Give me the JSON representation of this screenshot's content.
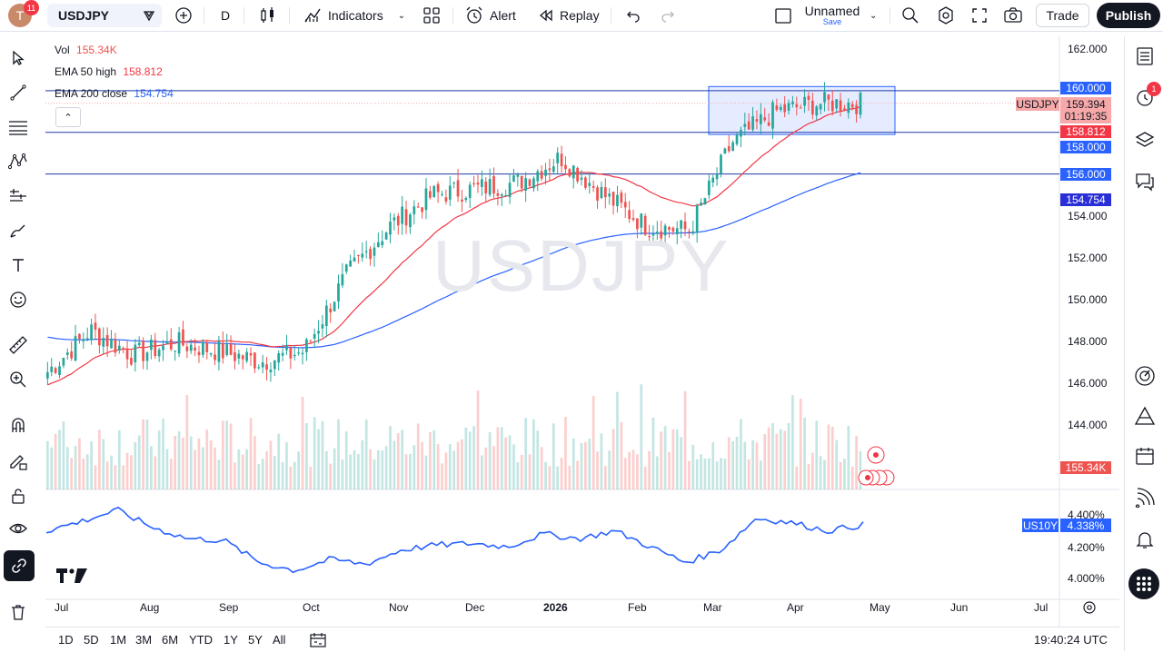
{
  "topbar": {
    "avatar_letter": "T",
    "notifications": "11",
    "symbol": "USDJPY",
    "interval": "D",
    "indicators_label": "Indicators",
    "alert_label": "Alert",
    "replay_label": "Replay",
    "layout_name": "Unnamed",
    "layout_save": "Save",
    "trade_label": "Trade",
    "publish_label": "Publish"
  },
  "legend": {
    "vol_label": "Vol",
    "vol_value": "155.34K",
    "ema50_label": "EMA 50 high",
    "ema50_value": "158.812",
    "ema200_label": "EMA 200 close",
    "ema200_value": "154.754"
  },
  "watermark": "USDJPY",
  "price_axis": {
    "ticks": [
      "162.000",
      "154.000",
      "152.000",
      "150.000",
      "148.000",
      "146.000",
      "144.000"
    ],
    "boxes": {
      "level_160": "160.000",
      "last_price": "159.394",
      "countdown": "01:19:35",
      "symbol_tag": "USDJPY",
      "ema50": "158.812",
      "level_158": "158.000",
      "level_156": "156.000",
      "ema200": "154.754",
      "volume": "155.34K"
    }
  },
  "lower_pane": {
    "symbol_tag": "US10Y",
    "value": "4.338%",
    "ticks": [
      "4.400%",
      "4.200%",
      "4.000%"
    ]
  },
  "time_axis": [
    "Jul",
    "Aug",
    "Sep",
    "Oct",
    "Nov",
    "Dec",
    "2026",
    "Feb",
    "Mar",
    "Apr",
    "May",
    "Jun",
    "Jul"
  ],
  "bottom": {
    "ranges": [
      "1D",
      "5D",
      "1M",
      "3M",
      "6M",
      "YTD",
      "1Y",
      "5Y",
      "All"
    ],
    "clock": "19:40:24 UTC"
  },
  "right_sidebar": {
    "alerts_badge": "1"
  },
  "colors": {
    "up": "#26a69a",
    "down": "#ef5350",
    "ema50": "#f23645",
    "ema200": "#2962ff",
    "levels": "#1e3aa8",
    "us10y": "#2962ff",
    "accent": "#131722"
  },
  "chart_data": {
    "type": "candlestick",
    "symbol": "USDJPY",
    "timeframe": "D",
    "ylim": [
      143.0,
      162.3
    ],
    "horizontal_levels": [
      160.0,
      158.0,
      156.0
    ],
    "rectangle": {
      "top": 160.2,
      "bottom": 157.9,
      "from": "late Feb",
      "to": "late Apr"
    },
    "close_path": [
      [
        "Jul",
        146.5
      ],
      [
        "mid-Jul",
        148.5
      ],
      [
        "Aug",
        147.3
      ],
      [
        "mid-Aug",
        147.9
      ],
      [
        "Sep",
        147.5
      ],
      [
        "mid-Sep",
        147.0
      ],
      [
        "Oct",
        147.5
      ],
      [
        "mid-Oct",
        151.2
      ],
      [
        "Nov",
        153.5
      ],
      [
        "mid-Nov",
        155.0
      ],
      [
        "Dec",
        155.3
      ],
      [
        "mid-Dec",
        155.6
      ],
      [
        "2026",
        156.8
      ],
      [
        "late Jan",
        155.0
      ],
      [
        "Feb",
        153.5
      ],
      [
        "mid-Feb",
        153.3
      ],
      [
        "Mar",
        157.5
      ],
      [
        "mid-Mar",
        159.0
      ],
      [
        "Apr",
        159.4
      ],
      [
        "late Apr",
        159.4
      ]
    ],
    "ema50_high": 158.812,
    "ema200_close": 154.754,
    "last_price": 159.394,
    "volume_last": "155.34K",
    "us10y": {
      "last": 4.338,
      "ylim": [
        3.95,
        4.45
      ],
      "path": [
        4.3,
        4.36,
        4.43,
        4.32,
        4.25,
        4.24,
        4.1,
        4.05,
        4.12,
        4.09,
        4.18,
        4.21,
        4.22,
        4.2,
        4.28,
        4.25,
        4.3,
        4.2,
        4.1,
        4.18,
        4.38,
        4.35,
        4.3,
        4.338
      ]
    }
  }
}
